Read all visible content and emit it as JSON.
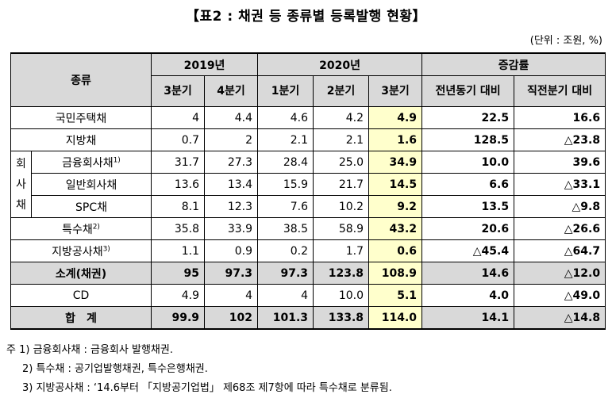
{
  "title": "【표2 : 채권 등 종류별 등록발행 현황】",
  "unit": "(단위 : 조원, %)",
  "header": {
    "type": "종류",
    "y2019": "2019년",
    "y2020": "2020년",
    "change": "증감률",
    "q3_2019": "3분기",
    "q4_2019": "4분기",
    "q1_2020": "1분기",
    "q2_2020": "2분기",
    "q3_2020": "3분기",
    "yoy": "전년동기 대비",
    "qoq": "직전분기 대비"
  },
  "company_group": [
    "회",
    "사",
    "채"
  ],
  "rows": [
    {
      "label": "국민주택채",
      "sup": "",
      "v": [
        "4",
        "4.4",
        "4.6",
        "4.2",
        "4.9",
        "22.5",
        "16.6"
      ]
    },
    {
      "label": "지방채",
      "sup": "",
      "v": [
        "0.7",
        "2",
        "2.1",
        "2.1",
        "1.6",
        "128.5",
        "△23.8"
      ]
    },
    {
      "label": "금융회사채",
      "sup": "1)",
      "v": [
        "31.7",
        "27.3",
        "28.4",
        "25.0",
        "34.9",
        "10.0",
        "39.6"
      ]
    },
    {
      "label": "일반회사채",
      "sup": "",
      "v": [
        "13.6",
        "13.4",
        "15.9",
        "21.7",
        "14.5",
        "6.6",
        "△33.1"
      ]
    },
    {
      "label": "SPC채",
      "sup": "",
      "v": [
        "8.1",
        "12.3",
        "7.6",
        "10.2",
        "9.2",
        "13.5",
        "△9.8"
      ]
    },
    {
      "label": "특수채",
      "sup": "2)",
      "v": [
        "35.8",
        "33.9",
        "38.5",
        "58.9",
        "43.2",
        "20.6",
        "△26.6"
      ]
    },
    {
      "label": "지방공사채",
      "sup": "3)",
      "v": [
        "1.1",
        "0.9",
        "0.2",
        "1.7",
        "0.6",
        "△45.4",
        "△64.7"
      ]
    },
    {
      "label": "소계(채권)",
      "sup": "",
      "v": [
        "95",
        "97.3",
        "97.3",
        "123.8",
        "108.9",
        "14.6",
        "△12.0"
      ]
    },
    {
      "label": "CD",
      "sup": "",
      "v": [
        "4.9",
        "4",
        "4",
        "10.0",
        "5.1",
        "4.0",
        "△49.0"
      ]
    },
    {
      "label": "합　계",
      "sup": "",
      "v": [
        "99.9",
        "102",
        "101.3",
        "133.8",
        "114.0",
        "14.1",
        "△14.8"
      ]
    }
  ],
  "notes": [
    "주 1)  금융회사채 : 금융회사 발행채권.",
    "2)  특수채 : 공기업발행채권, 특수은행채권.",
    "3)  지방공사채 : ‘14.6부터 「지방공기업법」 제68조 제7항에 따라 특수채로 분류됨."
  ]
}
